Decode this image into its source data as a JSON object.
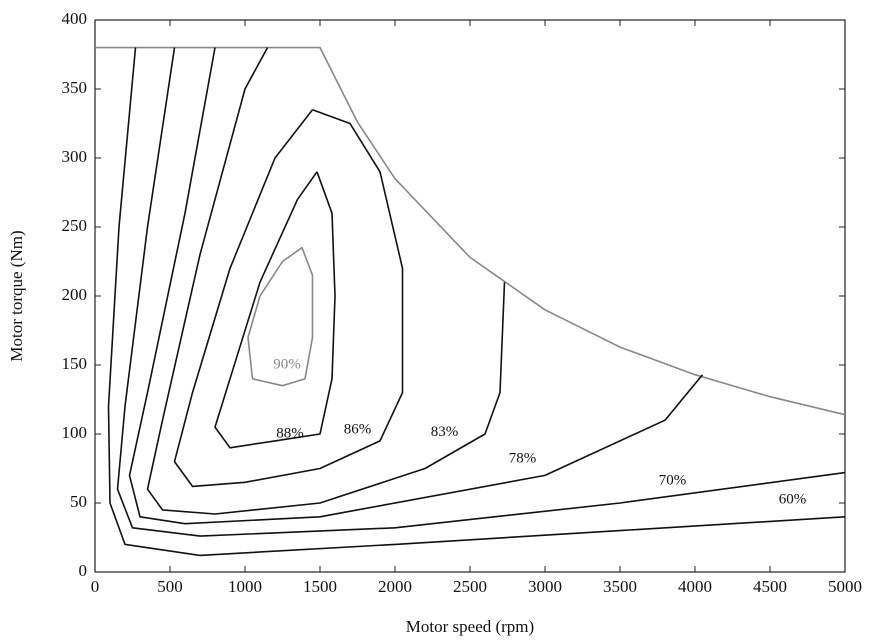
{
  "chart_data": {
    "type": "contour",
    "x_label": "Motor speed (rpm)",
    "y_label": "Motor torque (Nm)",
    "xlim": [
      0,
      5000
    ],
    "xticks": [
      0,
      500,
      1000,
      1500,
      2000,
      2500,
      3000,
      3500,
      4000,
      4500,
      5000
    ],
    "ylim": [
      0,
      400
    ],
    "yticks": [
      0,
      50,
      100,
      150,
      200,
      250,
      300,
      350,
      400
    ],
    "series": [
      {
        "color": "#888888",
        "x": [
          0,
          1500,
          1750,
          2000,
          2500,
          3000,
          3500,
          4000,
          4500,
          5000
        ],
        "y": [
          380,
          380,
          326,
          285,
          228,
          190,
          163,
          143,
          127,
          114
        ]
      },
      {
        "name": "90%",
        "color": "#888888",
        "x": [
          1050,
          1020,
          1100,
          1250,
          1380,
          1450,
          1450,
          1400,
          1250,
          1050
        ],
        "y": [
          140,
          170,
          200,
          225,
          235,
          215,
          170,
          140,
          135,
          140
        ]
      },
      {
        "name": "88%",
        "color": "#111111",
        "x": [
          1480,
          1350,
          1100,
          900,
          800,
          900,
          1200,
          1500,
          1580,
          1600,
          1580,
          1480
        ],
        "y": [
          290,
          270,
          210,
          140,
          105,
          90,
          95,
          100,
          140,
          200,
          260,
          290
        ]
      },
      {
        "name": "86%",
        "color": "#111111",
        "x": [
          1450,
          1200,
          900,
          650,
          530,
          650,
          1000,
          1500,
          1900,
          2050,
          2050,
          1900,
          1700,
          1450
        ],
        "y": [
          335,
          300,
          220,
          130,
          80,
          62,
          65,
          75,
          95,
          130,
          220,
          290,
          325,
          335
        ]
      },
      {
        "name": "83%",
        "color": "#111111",
        "x": [
          1150,
          1000,
          700,
          450,
          350,
          450,
          800,
          1500,
          2200,
          2600,
          2700,
          2730
        ],
        "y": [
          380,
          350,
          230,
          110,
          60,
          45,
          42,
          50,
          75,
          100,
          130,
          210
        ]
      },
      {
        "name": "78%",
        "color": "#111111",
        "x": [
          800,
          600,
          350,
          230,
          300,
          600,
          1500,
          3000,
          3800,
          4050
        ],
        "y": [
          380,
          260,
          130,
          70,
          40,
          35,
          40,
          70,
          110,
          143
        ]
      },
      {
        "name": "70%",
        "color": "#111111",
        "x": [
          530,
          350,
          200,
          150,
          250,
          700,
          2000,
          3500,
          5000
        ],
        "y": [
          380,
          250,
          120,
          60,
          32,
          26,
          32,
          50,
          72
        ]
      },
      {
        "name": "60%",
        "color": "#111111",
        "x": [
          270,
          160,
          90,
          100,
          200,
          700,
          2000,
          3500,
          5000
        ],
        "y": [
          380,
          250,
          120,
          50,
          20,
          12,
          20,
          30,
          40
        ]
      }
    ]
  }
}
